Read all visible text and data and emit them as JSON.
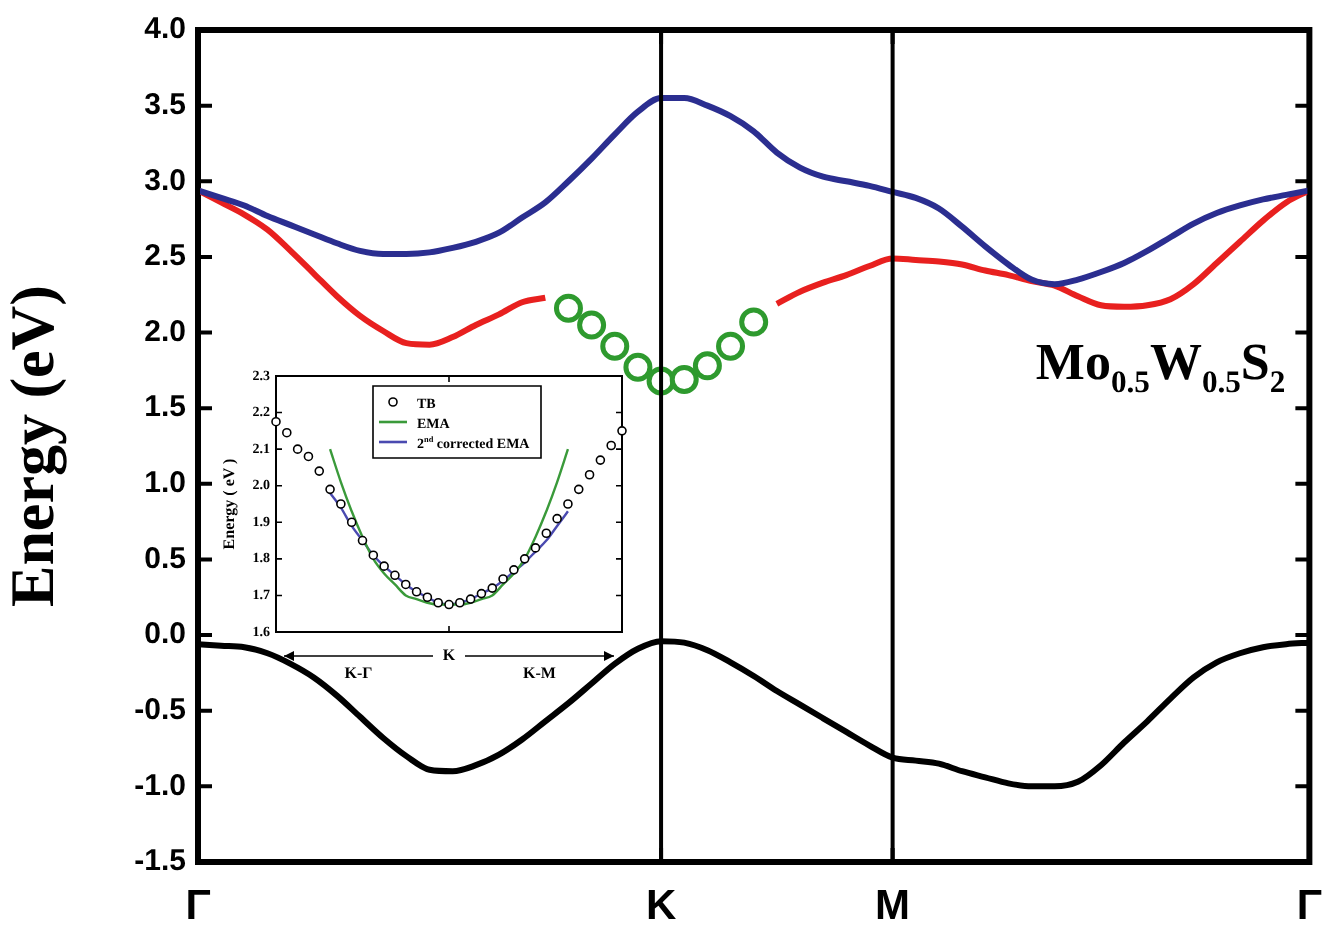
{
  "chart_data": [
    {
      "type": "line",
      "ylabel": "Energy (eV)",
      "categories": [
        "Γ",
        null,
        null,
        null,
        null,
        null,
        null,
        null,
        null,
        null,
        null,
        null,
        null,
        null,
        null,
        null,
        null,
        null,
        null,
        null,
        "K",
        null,
        null,
        null,
        null,
        null,
        null,
        null,
        null,
        null,
        "M",
        null,
        null,
        null,
        null,
        null,
        null,
        null,
        null,
        null,
        null,
        null,
        null,
        null,
        null,
        null,
        null,
        null,
        "Γ"
      ],
      "ylim": [
        -1.5,
        4
      ],
      "yticks": [
        -1.5,
        {
          "value": -1,
          "label": "-1.0"
        },
        -0.5,
        {
          "value": 0,
          "label": "0.0"
        },
        0.5,
        {
          "value": 1,
          "label": "1.0"
        },
        1.5,
        {
          "value": 2,
          "label": "2.0"
        },
        2.5,
        {
          "value": 3,
          "label": "3.0"
        },
        3.5,
        {
          "value": 4,
          "label": "4.0"
        }
      ],
      "grid": "x",
      "legend": false,
      "annotations": [
        "Mo$_{0.5}$W$_{0.5}$S$_{2}$"
      ],
      "series": [
        {
          "color": "#2b2e90",
          "values": [
            2.94,
            2.89,
            2.84,
            2.77,
            2.71,
            2.65,
            2.59,
            2.54,
            2.52,
            2.52,
            2.53,
            2.56,
            2.6,
            2.66,
            2.76,
            2.86,
            3.0,
            3.15,
            3.31,
            3.46,
            3.55,
            3.55,
            3.5,
            3.43,
            3.33,
            3.19,
            3.09,
            3.03,
            3.0,
            2.97,
            2.93,
            2.89,
            2.82,
            2.7,
            2.57,
            2.45,
            2.35,
            2.32,
            2.35,
            2.4,
            2.46,
            2.54,
            2.63,
            2.72,
            2.79,
            2.84,
            2.88,
            2.91,
            2.94
          ]
        },
        {
          "color": "#e8201f",
          "values": [
            2.94,
            2.86,
            2.78,
            2.68,
            2.54,
            2.39,
            2.24,
            2.11,
            2.01,
            1.93,
            1.92,
            1.97,
            2.05,
            2.12,
            2.2,
            2.23,
            null,
            null,
            null,
            null,
            null,
            null,
            null,
            null,
            null,
            2.19,
            2.27,
            2.33,
            2.38,
            2.44,
            2.49,
            2.48,
            2.47,
            2.45,
            2.41,
            2.38,
            2.34,
            2.31,
            2.24,
            2.18,
            2.17,
            2.18,
            2.22,
            2.32,
            2.46,
            2.6,
            2.74,
            2.86,
            2.94
          ]
        },
        {
          "type": "scatter",
          "color": "#2e9a2e",
          "marker": "circle",
          "values": [
            null,
            null,
            null,
            null,
            null,
            null,
            null,
            null,
            null,
            null,
            null,
            null,
            null,
            null,
            null,
            null,
            2.16,
            2.05,
            1.91,
            1.77,
            1.68,
            1.69,
            1.78,
            1.91,
            2.07,
            null,
            null,
            null,
            null,
            null,
            null,
            null,
            null,
            null,
            null,
            null,
            null,
            null,
            null,
            null,
            null,
            null,
            null,
            null,
            null,
            null,
            null,
            null,
            null
          ]
        },
        {
          "color": "#000000",
          "values": [
            -0.06,
            -0.07,
            -0.08,
            -0.12,
            -0.19,
            -0.28,
            -0.4,
            -0.54,
            -0.68,
            -0.8,
            -0.89,
            -0.9,
            -0.86,
            -0.79,
            -0.69,
            -0.57,
            -0.45,
            -0.32,
            -0.19,
            -0.09,
            -0.04,
            -0.05,
            -0.1,
            -0.18,
            -0.27,
            -0.37,
            -0.46,
            -0.55,
            -0.64,
            -0.73,
            -0.81,
            -0.83,
            -0.85,
            -0.9,
            -0.94,
            -0.98,
            -1.0,
            -1.0,
            -0.97,
            -0.86,
            -0.71,
            -0.57,
            -0.42,
            -0.28,
            -0.18,
            -0.12,
            -0.08,
            -0.06,
            -0.05
          ]
        }
      ]
    },
    {
      "type": "line",
      "ylabel": "Energy ( eV )",
      "ylim": [
        1.6,
        2.3
      ],
      "yticks": [
        1.6,
        1.7,
        1.8,
        1.9,
        {
          "value": 2,
          "label": "2.0"
        },
        2.1,
        2.2,
        2.3
      ],
      "categories": [
        null,
        null,
        null,
        null,
        null,
        null,
        null,
        null,
        null,
        null,
        null,
        null,
        null,
        null,
        null,
        null,
        "K",
        null,
        null,
        null,
        null,
        null,
        null,
        null,
        null,
        null,
        null,
        null,
        null,
        null,
        null,
        null,
        null
      ],
      "grid": false,
      "legend": "top",
      "annotations": [
        "K-Γ",
        "K-M"
      ],
      "series": [
        {
          "name": "TB",
          "type": "scatter",
          "marker": "circle",
          "color": "#000000",
          "values": [
            2.175,
            2.145,
            2.1,
            2.08,
            2.04,
            1.99,
            1.95,
            1.9,
            1.85,
            1.81,
            1.78,
            1.755,
            1.73,
            1.71,
            1.695,
            1.68,
            1.675,
            1.68,
            1.69,
            1.705,
            1.72,
            1.745,
            1.77,
            1.8,
            1.83,
            1.87,
            1.91,
            1.95,
            1.99,
            2.03,
            2.07,
            2.11,
            2.15
          ]
        },
        {
          "name": "EMA",
          "color": "#3a9a3a",
          "values": [
            null,
            null,
            null,
            null,
            null,
            2.1,
            2.01,
            1.93,
            1.86,
            1.8,
            1.76,
            1.73,
            1.7,
            1.69,
            1.68,
            1.675,
            1.675,
            1.675,
            1.68,
            1.69,
            1.7,
            1.73,
            1.76,
            1.8,
            1.86,
            1.93,
            2.01,
            2.1,
            null,
            null,
            null,
            null,
            null
          ]
        },
        {
          "name": "2$^{nd}$ corrected EMA",
          "color": "#4a4ab0",
          "values": [
            null,
            null,
            null,
            null,
            null,
            1.98,
            1.94,
            1.89,
            1.85,
            1.81,
            1.78,
            1.755,
            1.73,
            1.71,
            1.695,
            1.68,
            1.675,
            1.68,
            1.69,
            1.705,
            1.72,
            1.74,
            1.765,
            1.79,
            1.82,
            1.85,
            1.89,
            1.93,
            null,
            null,
            null,
            null,
            null
          ]
        }
      ]
    }
  ]
}
